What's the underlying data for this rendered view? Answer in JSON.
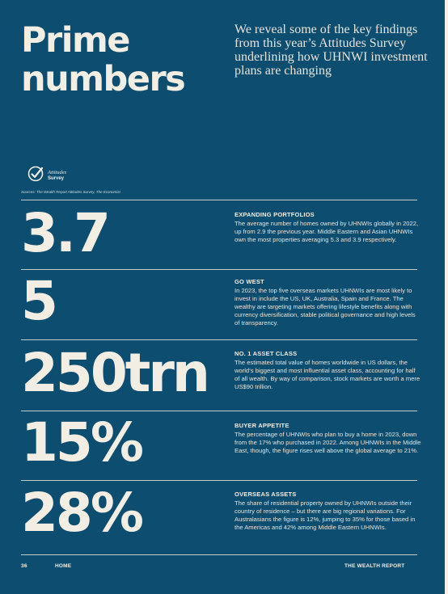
{
  "header": {
    "title_line1": "Prime",
    "title_line2": "numbers",
    "intro": "We reveal some of the key findings from this year’s Attitudes Survey underlining how UHNWI investment plans are changing"
  },
  "logo": {
    "line1": "Attitudes",
    "line2": "Survey",
    "icon": "check-circle-icon"
  },
  "sources": "Sources: The Wealth Report Attitudes Survey, The Economist",
  "stats": [
    {
      "value": "3.7",
      "heading": "EXPANDING PORTFOLIOS",
      "body": "The average number of homes owned by UHNWIs globally in 2022, up from 2.9 the previous year. Middle Eastern and Asian UHNWIs own the most properties averaging 5.3 and 3.9 respectively."
    },
    {
      "value": "5",
      "heading": "GO WEST",
      "body": "In 2023, the top five overseas markets UHNWIs are most likely to invest in include the US, UK, Australia, Spain and France. The wealthy are targeting markets offering lifestyle benefits along with currency diversification, stable political governance and high levels of transparency."
    },
    {
      "value": "250trn",
      "heading": "NO. 1 ASSET CLASS",
      "body": "The estimated total value of homes worldwide in US dollars, the world’s biggest and most influential asset class, accounting for half of all wealth. By way of comparison, stock markets are worth a mere US$90 trillion."
    },
    {
      "value": "15%",
      "heading": "BUYER APPETITE",
      "body": "The percentage of UHNWIs who plan to buy a home in 2023, down from the 17% who purchased in 2022. Among UHNWIs in the Middle East, though, the figure rises well above the global average to 21%."
    },
    {
      "value": "28%",
      "heading": "OVERSEAS ASSETS",
      "body": "The share of residential property owned by UHNWIs outside their country of residence – but there are big regional variations. For Australasians the figure is 12%, jumping to 35% for those based in the Americas and 42% among Middle Eastern UHNWIs."
    }
  ],
  "footer": {
    "page_number": "36",
    "section": "HOME",
    "publication": "THE WEALTH REPORT"
  }
}
